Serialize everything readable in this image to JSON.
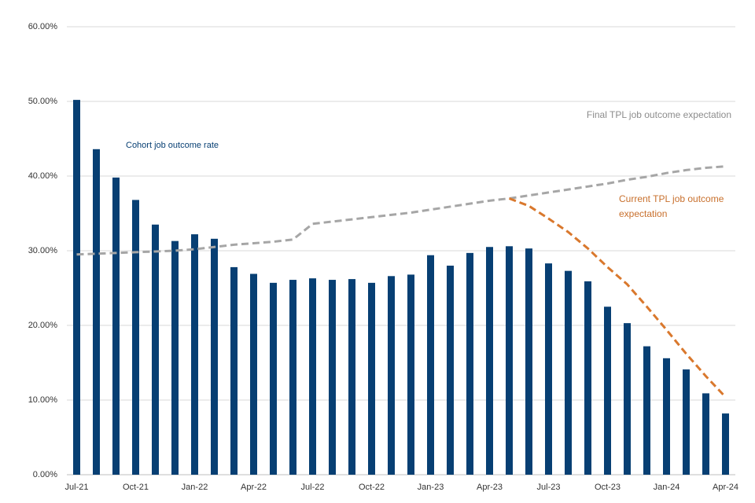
{
  "chart_data": {
    "type": "bar_line",
    "categories": [
      "Jul-21",
      null,
      null,
      "Oct-21",
      null,
      null,
      "Jan-22",
      null,
      null,
      "Apr-22",
      null,
      null,
      "Jul-22",
      null,
      null,
      "Oct-22",
      null,
      null,
      "Jan-23",
      null,
      null,
      "Apr-23",
      null,
      null,
      "Jul-23",
      null,
      null,
      "Oct-23",
      null,
      null,
      "Jan-24",
      null,
      null,
      "Apr-24"
    ],
    "series": [
      {
        "name": "Cohort job outcome rate",
        "color": "#073f73",
        "kind": "bar",
        "values": [
          50.2,
          43.6,
          39.8,
          36.8,
          33.5,
          31.3,
          32.2,
          31.6,
          27.8,
          26.9,
          25.7,
          26.1,
          26.3,
          26.1,
          26.2,
          25.7,
          26.6,
          26.8,
          29.4,
          28.0,
          29.7,
          30.5,
          30.6,
          30.3,
          28.3,
          27.3,
          25.9,
          22.5,
          20.3,
          17.2,
          15.6,
          14.1,
          10.9,
          8.2
        ]
      },
      {
        "name": "Final TPL job outcome expectation",
        "color": "#a6a6a6",
        "kind": "dashed-line",
        "values": [
          29.5,
          29.6,
          29.7,
          29.8,
          29.9,
          30.0,
          30.2,
          30.5,
          30.8,
          31.0,
          31.2,
          31.5,
          33.6,
          33.9,
          34.2,
          34.5,
          34.8,
          35.1,
          35.5,
          35.9,
          36.3,
          36.7,
          37.0,
          37.4,
          37.8,
          38.2,
          38.6,
          39.0,
          39.5,
          39.9,
          40.4,
          40.8,
          41.1,
          41.3
        ]
      },
      {
        "name": "Current TPL job outcome expectation",
        "color": "#d9782d",
        "kind": "dashed-line",
        "values": [
          null,
          null,
          null,
          null,
          null,
          null,
          null,
          null,
          null,
          null,
          null,
          null,
          null,
          null,
          null,
          null,
          null,
          null,
          null,
          null,
          null,
          null,
          37.0,
          36.0,
          34.3,
          32.5,
          30.3,
          27.8,
          25.5,
          22.5,
          19.4,
          16.2,
          13.2,
          10.4
        ]
      }
    ],
    "ylim": [
      0,
      60
    ],
    "yticks": [
      {
        "value": 0,
        "label": "0.00%"
      },
      {
        "value": 10,
        "label": "10.00%"
      },
      {
        "value": 20,
        "label": "20.00%"
      },
      {
        "value": 30,
        "label": "30.00%"
      },
      {
        "value": 40,
        "label": "40.00%"
      },
      {
        "value": 50,
        "label": "50.00%"
      },
      {
        "value": 60,
        "label": "60.00%"
      }
    ],
    "grid": true
  }
}
